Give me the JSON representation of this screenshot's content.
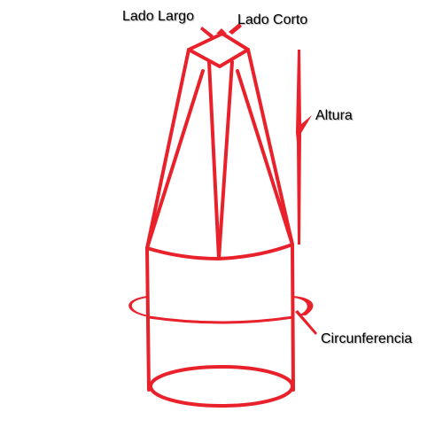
{
  "labels": {
    "long_side": "Lado Largo",
    "short_side": "Lado Corto",
    "height": "Altura",
    "circumference": "Circunferencia"
  },
  "colors": {
    "stroke": "#e8212b",
    "text": "#000000",
    "background": "#ffffff"
  }
}
